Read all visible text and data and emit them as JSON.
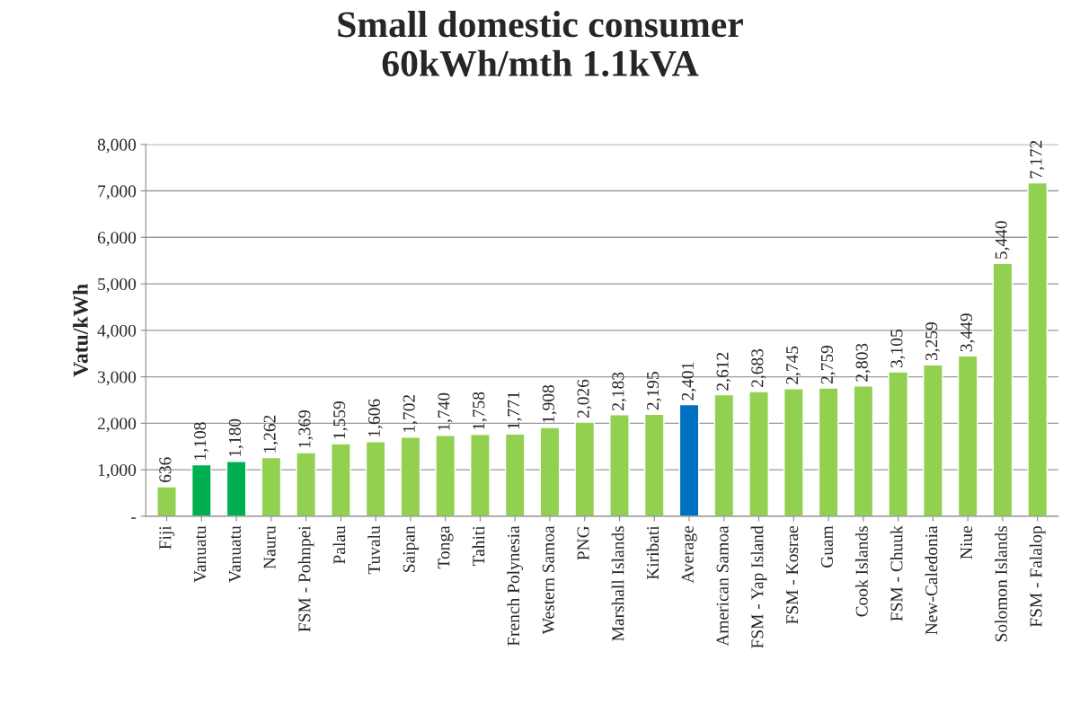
{
  "chart_data": {
    "type": "bar",
    "title": "Small domestic consumer\n60kWh/mth 1.1kVA",
    "ylabel": "Vatu/kWh",
    "categories": [
      "Fiji",
      "Vanuatu",
      "Vanuatu",
      "Nauru",
      "FSM - Pohnpei",
      "Palau",
      "Tuvalu",
      "Saipan",
      "Tonga",
      "Tahiti",
      "French Polynesia",
      "Western Samoa",
      "PNG",
      "Marshall Islands",
      "Kiribati",
      "Average",
      "American Samoa",
      "FSM - Yap Island",
      "FSM - Kosrae",
      "Guam",
      "Cook Islands",
      "FSM - Chuuk",
      "New-Caledonia",
      "Niue",
      "Solomon Islands",
      "FSM - Falalop"
    ],
    "values": [
      636,
      1108,
      1180,
      1262,
      1369,
      1559,
      1606,
      1702,
      1740,
      1758,
      1771,
      1908,
      2026,
      2183,
      2195,
      2401,
      2612,
      2683,
      2745,
      2759,
      2803,
      3105,
      3259,
      3449,
      5440,
      7172
    ],
    "colors": [
      "#92d050",
      "#00b050",
      "#00b050",
      "#92d050",
      "#92d050",
      "#92d050",
      "#92d050",
      "#92d050",
      "#92d050",
      "#92d050",
      "#92d050",
      "#92d050",
      "#92d050",
      "#92d050",
      "#92d050",
      "#0070c0",
      "#92d050",
      "#92d050",
      "#92d050",
      "#92d050",
      "#92d050",
      "#92d050",
      "#92d050",
      "#92d050",
      "#92d050",
      "#92d050"
    ],
    "value_labels": [
      "636",
      "1,108",
      "1,180",
      "1,262",
      "1,369",
      "1,559",
      "1,606",
      "1,702",
      "1,740",
      "1,758",
      "1,771",
      "1,908",
      "2,026",
      "2,183",
      "2,195",
      "2,401",
      "2,612",
      "2,683",
      "2,745",
      "2,759",
      "2,803",
      "3,105",
      "3,259",
      "3,449",
      "5,440",
      "7,172"
    ],
    "ylim": [
      0,
      8000
    ],
    "yticks": [
      {
        "value": 0,
        "label": "-"
      },
      {
        "value": 1000,
        "label": "1,000"
      },
      {
        "value": 2000,
        "label": "2,000"
      },
      {
        "value": 3000,
        "label": "3,000"
      },
      {
        "value": 4000,
        "label": "4,000"
      },
      {
        "value": 5000,
        "label": "5,000"
      },
      {
        "value": 6000,
        "label": "6,000"
      },
      {
        "value": 7000,
        "label": "7,000"
      },
      {
        "value": 8000,
        "label": "8,000"
      }
    ],
    "grid": "y",
    "legend": false
  }
}
